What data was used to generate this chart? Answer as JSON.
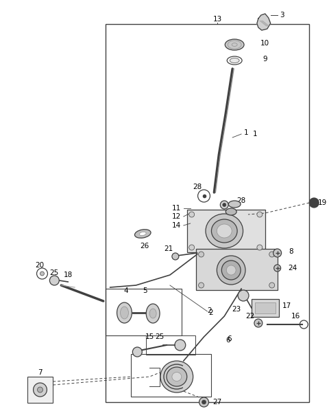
{
  "background_color": "#ffffff",
  "line_color": "#404040",
  "light_gray": "#b0b0b0",
  "mid_gray": "#909090",
  "dark_gray": "#404040"
}
